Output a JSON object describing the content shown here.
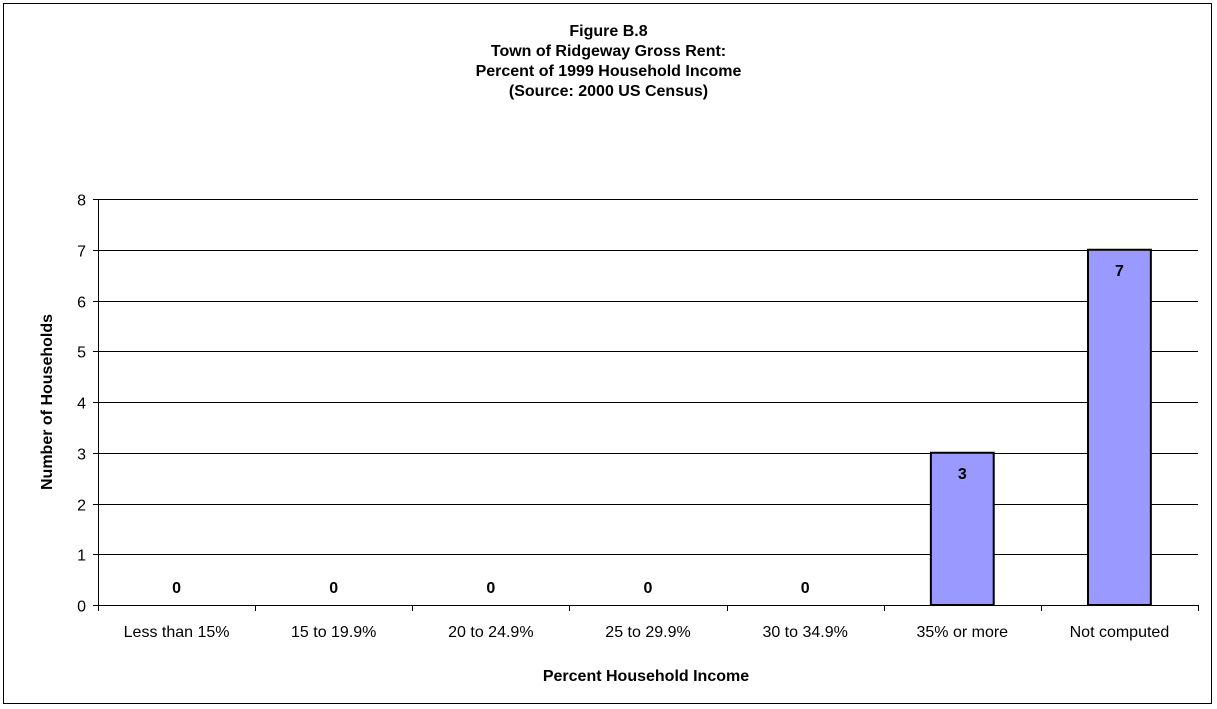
{
  "chart_data": {
    "type": "bar",
    "title_lines": [
      "Figure B.8",
      "Town of Ridgeway Gross Rent:",
      "Percent of 1999 Household Income",
      "(Source: 2000 US Census)"
    ],
    "categories": [
      "Less than 15%",
      "15 to 19.9%",
      "20 to 24.9%",
      "25 to 29.9%",
      "30 to 34.9%",
      "35% or more",
      "Not computed"
    ],
    "values": [
      0,
      0,
      0,
      0,
      0,
      3,
      7
    ],
    "data_labels": [
      "0",
      "0",
      "0",
      "0",
      "0",
      "3",
      "7"
    ],
    "xlabel": "Percent Household Income",
    "ylabel": "Number of Households",
    "ylim": [
      0,
      8
    ],
    "y_ticks": [
      0,
      1,
      2,
      3,
      4,
      5,
      6,
      7,
      8
    ],
    "grid": true,
    "legend": "none",
    "colors": {
      "bar_fill": "#9999ff",
      "bar_stroke": "#000000",
      "grid": "#000000"
    }
  }
}
